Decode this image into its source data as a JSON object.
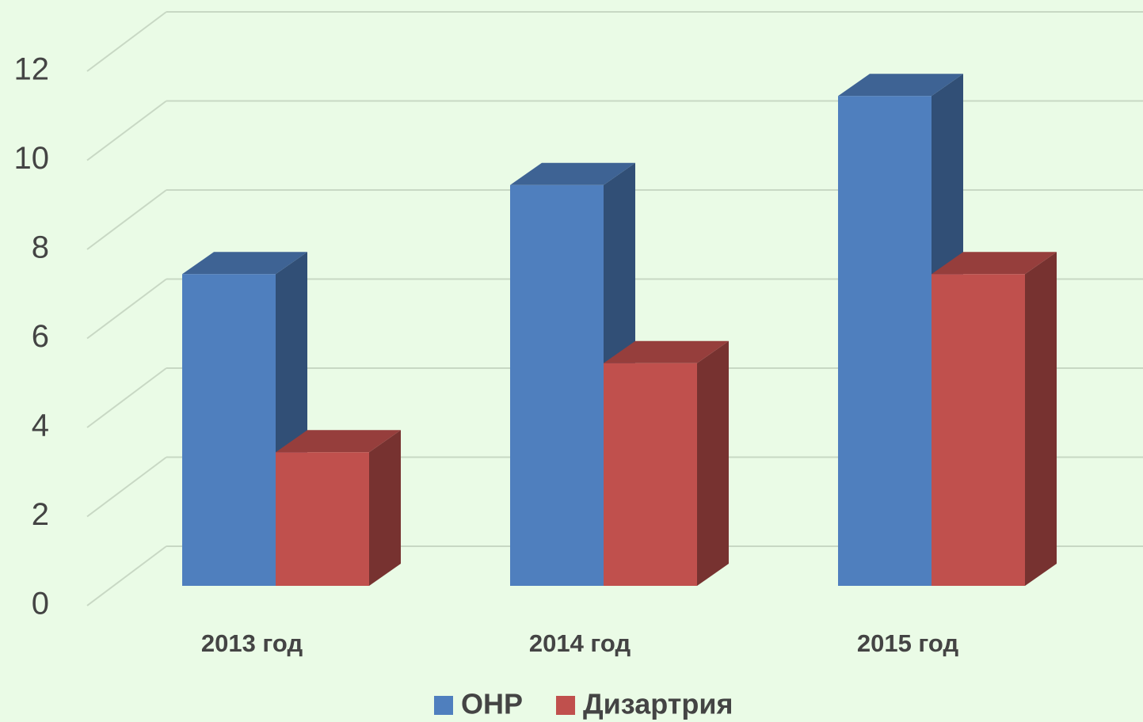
{
  "chart_data": {
    "type": "bar3d",
    "categories": [
      "2013 год",
      "2014 год",
      "2015 год"
    ],
    "series": [
      {
        "name": "ОНР",
        "color": "#4f7fbe",
        "values": [
          7,
          9,
          11
        ]
      },
      {
        "name": "Дизартрия",
        "color": "#c0504d",
        "values": [
          3,
          5,
          7
        ]
      }
    ],
    "ylim": [
      0,
      12
    ],
    "yticks": [
      0,
      2,
      4,
      6,
      8,
      10,
      12
    ],
    "grid": true,
    "legend": "bottom"
  }
}
